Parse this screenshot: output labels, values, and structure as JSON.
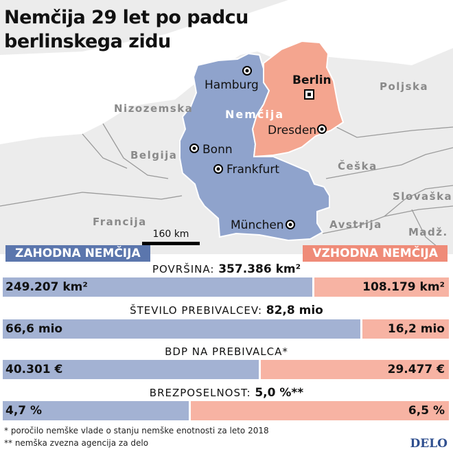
{
  "title_line1": "Nemčija 29 let po padcu",
  "title_line2": "berlinskega zidu",
  "map": {
    "germany_label": "Nemčija",
    "countries": [
      "Poljska",
      "Nizozemska",
      "Belgija",
      "Češka",
      "Slovaška",
      "Francija",
      "Avstrija",
      "Madž."
    ],
    "cities": {
      "hamburg": "Hamburg",
      "berlin": "Berlin",
      "dresden": "Dresden",
      "bonn": "Bonn",
      "frankfurt": "Frankfurt",
      "munchen": "München"
    },
    "scale_label": "160 km",
    "west_color": "#8fa3cc",
    "east_color": "#f4a58f"
  },
  "legend": {
    "west": "Zahodna Nemčija",
    "east": "Vzhodna Nemčija"
  },
  "chart_data": [
    {
      "type": "bar",
      "title_label": "Površina: ",
      "title_value": "357.386 km²",
      "west_label": "249.207 km²",
      "east_label": "108.179 km²",
      "values": [
        249207,
        108179
      ],
      "unit": "km²"
    },
    {
      "type": "bar",
      "title_label": "Število prebivalcev: ",
      "title_value": "82,8 mio",
      "west_label": "66,6 mio",
      "east_label": "16,2 mio",
      "values": [
        66.6,
        16.2
      ],
      "unit": "mio"
    },
    {
      "type": "bar",
      "title_label": "BDP na prebivalca*",
      "title_value": "",
      "west_label": "40.301 €",
      "east_label": "29.477 €",
      "values": [
        40301,
        29477
      ],
      "unit": "€"
    },
    {
      "type": "bar",
      "title_label": "Brezposelnost: ",
      "title_value": "5,0 %**",
      "west_label": "4,7 %",
      "east_label": "6,5 %",
      "values": [
        4.7,
        6.5
      ],
      "unit": "%"
    }
  ],
  "footnotes": [
    "* poročilo nemške vlade o stanju nemške enotnosti za leto 2018",
    "** nemška zvezna agencija za delo"
  ],
  "logo": "DELO"
}
